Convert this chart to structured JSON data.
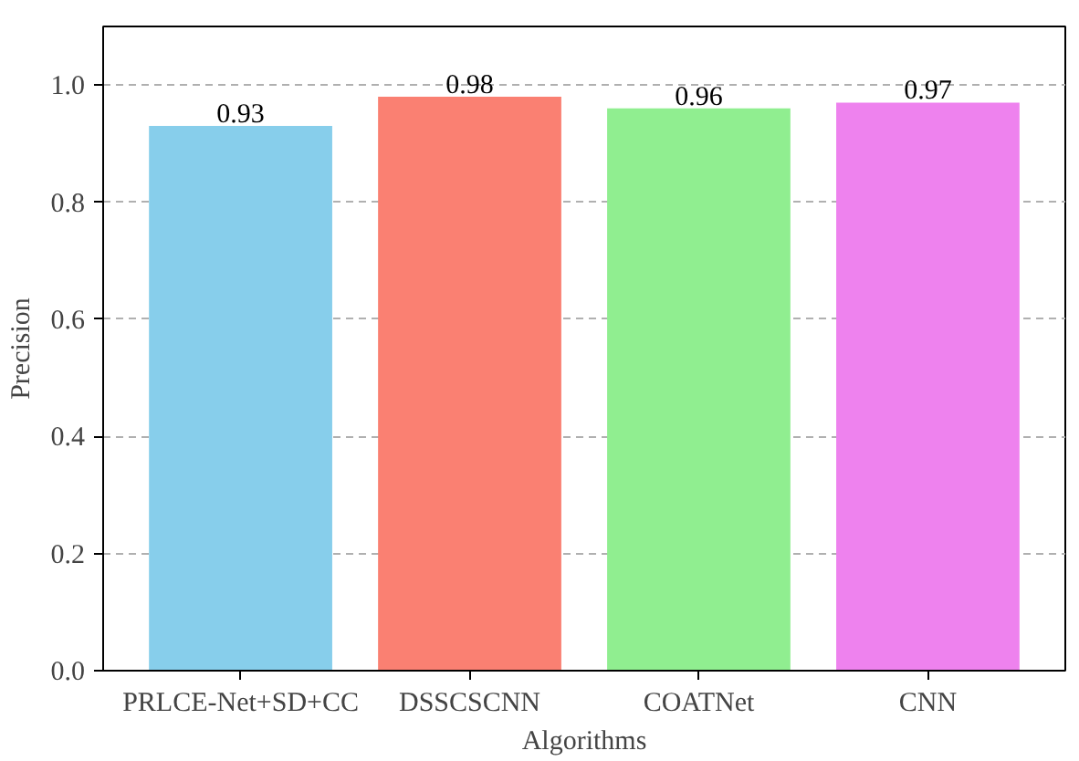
{
  "chart_data": {
    "type": "bar",
    "xlabel": "Algorithms",
    "ylabel": "Precision",
    "categories": [
      "PRLCE-Net+SD+CC",
      "DSSCSCNN",
      "COATNet",
      "CNN"
    ],
    "values": [
      0.93,
      0.98,
      0.96,
      0.97
    ],
    "colors": [
      "#87ceeb",
      "#fa8072",
      "#90ee90",
      "#ee82ee"
    ],
    "ylim": [
      0,
      1.1
    ],
    "yticks": [
      {
        "value": 0,
        "label": "0.0"
      },
      0.2,
      0.4,
      0.6,
      0.8,
      {
        "value": 1,
        "label": "1.0"
      }
    ],
    "grid": "y",
    "data_labels": true
  }
}
